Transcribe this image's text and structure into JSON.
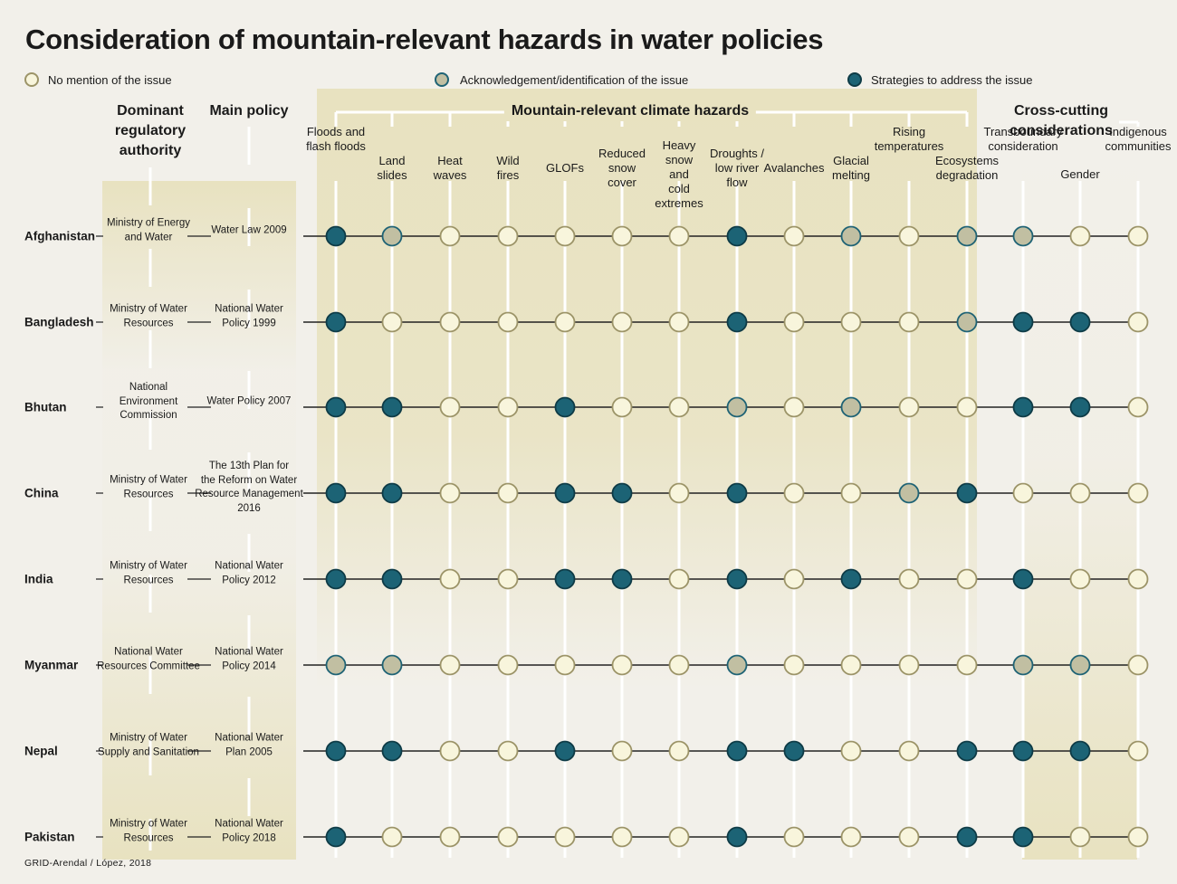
{
  "title": "Consideration of mountain-relevant hazards in water policies",
  "legend": [
    {
      "key": "none",
      "label": "No mention of the issue"
    },
    {
      "key": "ack",
      "label": "Acknowledgement/identification of the issue"
    },
    {
      "key": "strat",
      "label": "Strategies to address the issue"
    }
  ],
  "colors": {
    "none_fill": "#f8f5dc",
    "none_stroke": "#9c9468",
    "ack_fill": "#c1bfa2",
    "ack_stroke": "#1f6375",
    "strat_fill": "#1c6375",
    "strat_stroke": "#0e3b46",
    "panel": "#e8e2c0",
    "background": "#f2f0ea"
  },
  "headers": {
    "authority": "Dominant\nregulatory\nauthority",
    "policy": "Main policy",
    "hazards": "Mountain-relevant climate hazards",
    "crosscutting": "Cross-cutting considerations"
  },
  "columns": [
    {
      "key": "floods",
      "label": "Floods and\nflash floods",
      "group": "hazards"
    },
    {
      "key": "landslides",
      "label": "Land\nslides",
      "group": "hazards"
    },
    {
      "key": "heat",
      "label": "Heat\nwaves",
      "group": "hazards"
    },
    {
      "key": "wildfires",
      "label": "Wild\nfires",
      "group": "hazards"
    },
    {
      "key": "glofs",
      "label": "GLOFs",
      "group": "hazards"
    },
    {
      "key": "snowcover",
      "label": "Reduced\nsnow\ncover",
      "group": "hazards"
    },
    {
      "key": "heavysnow",
      "label": "Heavy\nsnow\nand\ncold\nextremes",
      "group": "hazards"
    },
    {
      "key": "droughts",
      "label": "Droughts /\nlow river\nflow",
      "group": "hazards"
    },
    {
      "key": "avalanches",
      "label": "Avalanches",
      "group": "hazards"
    },
    {
      "key": "glacial",
      "label": "Glacial\nmelting",
      "group": "hazards"
    },
    {
      "key": "temps",
      "label": "Rising\ntemperatures",
      "group": "hazards"
    },
    {
      "key": "ecosystems",
      "label": "Ecosystems\ndegradation",
      "group": "hazards"
    },
    {
      "key": "transboundary",
      "label": "Transboundary\nconsideration",
      "group": "crosscutting"
    },
    {
      "key": "gender",
      "label": "Gender",
      "group": "crosscutting"
    },
    {
      "key": "indigenous",
      "label": "Indigenous\ncommunities",
      "group": "crosscutting"
    }
  ],
  "rows": [
    {
      "country": "Afghanistan",
      "authority": "Ministry of Energy\nand Water",
      "policy": "Water Law 2009",
      "values": [
        "strat",
        "ack",
        "none",
        "none",
        "none",
        "none",
        "none",
        "strat",
        "none",
        "ack",
        "none",
        "ack",
        "ack",
        "none",
        "none"
      ]
    },
    {
      "country": "Bangladesh",
      "authority": "Ministry of Water\nResources",
      "policy": "National Water\nPolicy 1999",
      "values": [
        "strat",
        "none",
        "none",
        "none",
        "none",
        "none",
        "none",
        "strat",
        "none",
        "none",
        "none",
        "ack",
        "strat",
        "strat",
        "none"
      ]
    },
    {
      "country": "Bhutan",
      "authority": "National\nEnvironment\nCommission",
      "policy": "Water Policy 2007",
      "values": [
        "strat",
        "strat",
        "none",
        "none",
        "strat",
        "none",
        "none",
        "ack",
        "none",
        "ack",
        "none",
        "none",
        "strat",
        "strat",
        "none"
      ]
    },
    {
      "country": "China",
      "authority": "Ministry of Water\nResources",
      "policy": "The 13th Plan for\nthe Reform on Water\nResource Management\n2016",
      "values": [
        "strat",
        "strat",
        "none",
        "none",
        "strat",
        "strat",
        "none",
        "strat",
        "none",
        "none",
        "ack",
        "strat",
        "none",
        "none",
        "none"
      ]
    },
    {
      "country": "India",
      "authority": "Ministry of Water\nResources",
      "policy": "National Water\nPolicy 2012",
      "values": [
        "strat",
        "strat",
        "none",
        "none",
        "strat",
        "strat",
        "none",
        "strat",
        "none",
        "strat",
        "none",
        "none",
        "strat",
        "none",
        "none"
      ]
    },
    {
      "country": "Myanmar",
      "authority": "National Water\nResources Committee",
      "policy": "National Water\nPolicy 2014",
      "values": [
        "ack",
        "ack",
        "none",
        "none",
        "none",
        "none",
        "none",
        "ack",
        "none",
        "none",
        "none",
        "none",
        "ack",
        "ack",
        "none"
      ]
    },
    {
      "country": "Nepal",
      "authority": "Ministry of Water\nSupply and Sanitation",
      "policy": "National Water\nPlan 2005",
      "values": [
        "strat",
        "strat",
        "none",
        "none",
        "strat",
        "none",
        "none",
        "strat",
        "strat",
        "none",
        "none",
        "strat",
        "strat",
        "strat",
        "none"
      ]
    },
    {
      "country": "Pakistan",
      "authority": "Ministry of Water\nResources",
      "policy": "National Water\nPolicy 2018",
      "values": [
        "strat",
        "none",
        "none",
        "none",
        "none",
        "none",
        "none",
        "strat",
        "none",
        "none",
        "none",
        "strat",
        "strat",
        "none",
        "none"
      ]
    }
  ],
  "credit": "GRID-Arendal / López, 2018"
}
